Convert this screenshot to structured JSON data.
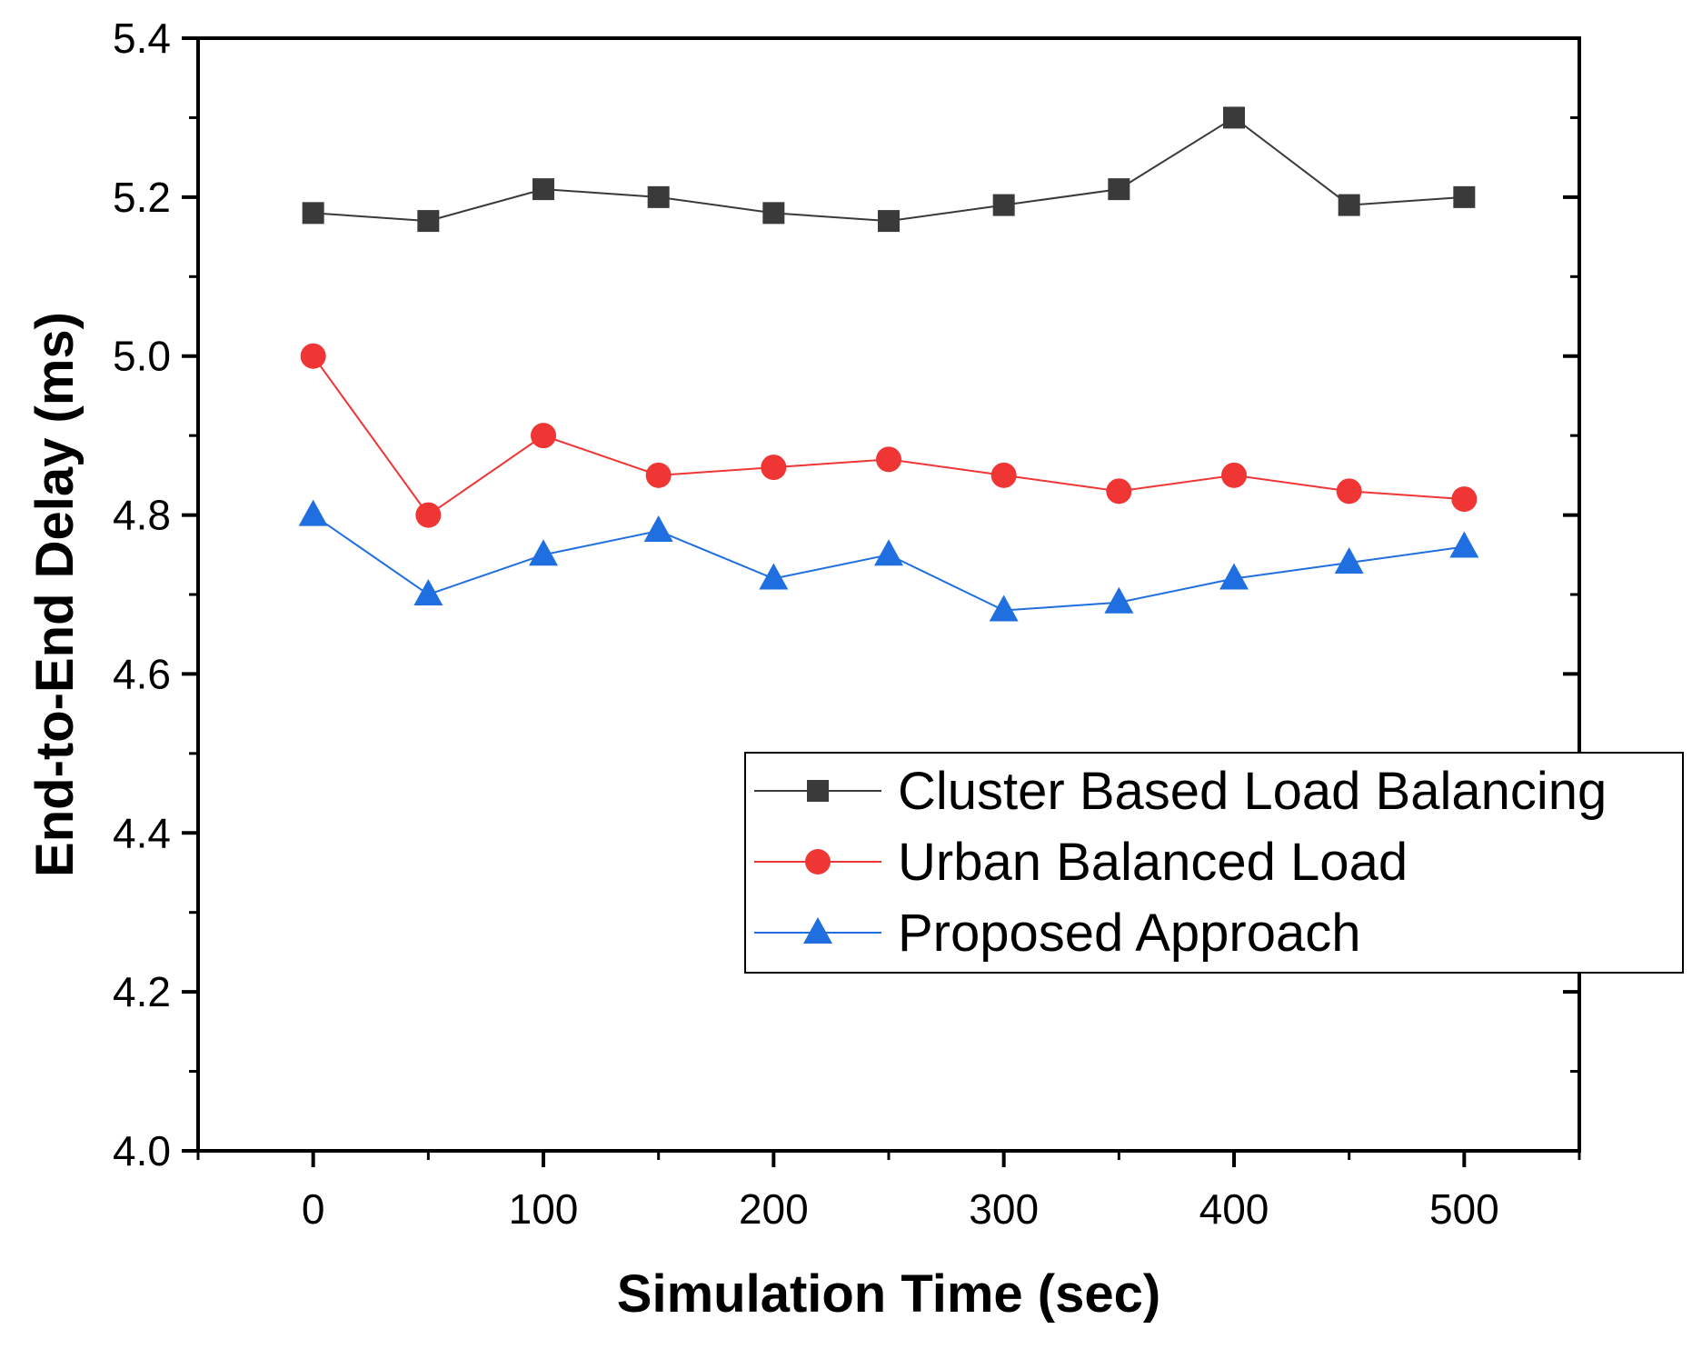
{
  "chart_data": {
    "type": "line",
    "title": "",
    "xlabel": "Simulation Time (sec)",
    "ylabel": "End-to-End Delay (ms)",
    "xlim": [
      -50,
      550
    ],
    "ylim": [
      4.0,
      5.4
    ],
    "x": [
      0,
      50,
      100,
      150,
      200,
      250,
      300,
      350,
      400,
      450,
      500
    ],
    "x_ticks": [
      0,
      100,
      200,
      300,
      400,
      500
    ],
    "x_tick_labels": [
      "0",
      "100",
      "200",
      "300",
      "400",
      "500"
    ],
    "y_ticks": [
      4.0,
      4.2,
      4.4,
      4.6,
      4.8,
      5.0,
      5.2,
      5.4
    ],
    "y_tick_labels": [
      "4.0",
      "4.2",
      "4.4",
      "4.6",
      "4.8",
      "5.0",
      "5.2",
      "5.4"
    ],
    "grid": false,
    "legend_position": "center-right",
    "series": [
      {
        "name": "Cluster Based Load Balancing",
        "color": "#3a3a3a",
        "marker": "square",
        "values": [
          5.18,
          5.17,
          5.21,
          5.2,
          5.18,
          5.17,
          5.19,
          5.21,
          5.3,
          5.19,
          5.2
        ]
      },
      {
        "name": "Urban Balanced Load",
        "color": "#f03535",
        "marker": "circle",
        "values": [
          5.0,
          4.8,
          4.9,
          4.85,
          4.86,
          4.87,
          4.85,
          4.83,
          4.85,
          4.83,
          4.82
        ]
      },
      {
        "name": "Proposed Approach",
        "color": "#1f6fe0",
        "marker": "triangle",
        "values": [
          4.8,
          4.7,
          4.75,
          4.78,
          4.72,
          4.75,
          4.68,
          4.69,
          4.72,
          4.74,
          4.76
        ]
      }
    ]
  }
}
